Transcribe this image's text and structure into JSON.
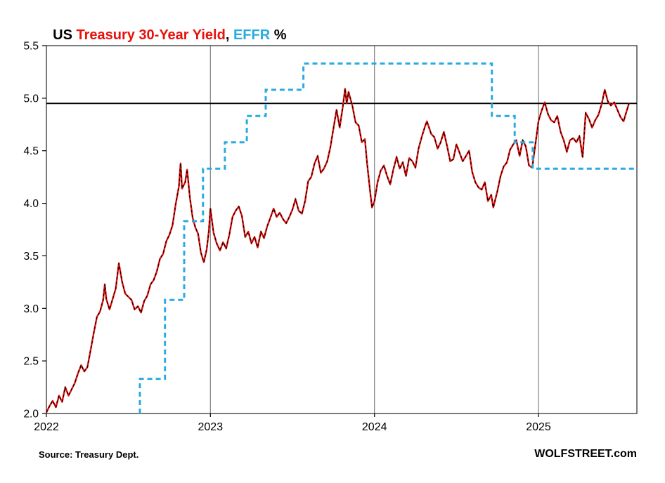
{
  "title": {
    "prefix": "US ",
    "series1": "Treasury 30-Year Yield",
    "separator": ", ",
    "series2": "EFFR",
    "suffix": " %"
  },
  "footer": {
    "source": "Source: Treasury Dept.",
    "brand": "WOLFSTREET.com"
  },
  "colors": {
    "treasury_red": "#e8100c",
    "treasury_overlay_black": "#000000",
    "effr_blue": "#29abe2",
    "gridline": "#808080",
    "frame": "#262626",
    "reference_line": "#000000",
    "background": "#ffffff"
  },
  "chart_data": {
    "type": "line",
    "title": "US Treasury 30-Year Yield, EFFR %",
    "xlabel": "",
    "ylabel": "%",
    "legend_position": "in-title",
    "grid": "vertical-only",
    "x_axis": {
      "min": 2022.0,
      "max": 2025.6,
      "ticks": [
        2022,
        2023,
        2024,
        2025
      ],
      "gridlines": [
        2023,
        2024,
        2025
      ]
    },
    "y_axis": {
      "min": 2.0,
      "max": 5.5,
      "step": 0.5
    },
    "style": {
      "gridline_color": "#808080",
      "frame_color": "#262626"
    },
    "reference_line": {
      "value": 4.95,
      "color": "#000000",
      "width": 1.8,
      "note": "latest 30-year yield level"
    },
    "series": [
      {
        "name": "US Treasury 30-Year Yield",
        "color": "#e8100c",
        "width": 2.4,
        "overlay": {
          "color": "#000000",
          "width": 1.3,
          "dash": "3.5 3.5"
        },
        "points": [
          [
            2022.0,
            2.01
          ],
          [
            2022.019,
            2.07
          ],
          [
            2022.038,
            2.12
          ],
          [
            2022.058,
            2.06
          ],
          [
            2022.077,
            2.17
          ],
          [
            2022.096,
            2.11
          ],
          [
            2022.115,
            2.25
          ],
          [
            2022.135,
            2.17
          ],
          [
            2022.154,
            2.23
          ],
          [
            2022.173,
            2.29
          ],
          [
            2022.192,
            2.38
          ],
          [
            2022.212,
            2.46
          ],
          [
            2022.231,
            2.4
          ],
          [
            2022.25,
            2.44
          ],
          [
            2022.269,
            2.6
          ],
          [
            2022.288,
            2.76
          ],
          [
            2022.308,
            2.92
          ],
          [
            2022.327,
            2.97
          ],
          [
            2022.346,
            3.08
          ],
          [
            2022.356,
            3.23
          ],
          [
            2022.365,
            3.09
          ],
          [
            2022.385,
            2.99
          ],
          [
            2022.404,
            3.09
          ],
          [
            2022.423,
            3.19
          ],
          [
            2022.442,
            3.43
          ],
          [
            2022.462,
            3.25
          ],
          [
            2022.481,
            3.14
          ],
          [
            2022.5,
            3.11
          ],
          [
            2022.519,
            3.08
          ],
          [
            2022.538,
            2.99
          ],
          [
            2022.558,
            3.02
          ],
          [
            2022.577,
            2.96
          ],
          [
            2022.596,
            3.07
          ],
          [
            2022.615,
            3.12
          ],
          [
            2022.635,
            3.23
          ],
          [
            2022.654,
            3.27
          ],
          [
            2022.673,
            3.35
          ],
          [
            2022.692,
            3.47
          ],
          [
            2022.712,
            3.52
          ],
          [
            2022.731,
            3.64
          ],
          [
            2022.75,
            3.7
          ],
          [
            2022.769,
            3.79
          ],
          [
            2022.788,
            3.99
          ],
          [
            2022.808,
            4.16
          ],
          [
            2022.818,
            4.38
          ],
          [
            2022.827,
            4.14
          ],
          [
            2022.846,
            4.2
          ],
          [
            2022.858,
            4.32
          ],
          [
            2022.875,
            4.05
          ],
          [
            2022.892,
            3.86
          ],
          [
            2022.908,
            3.77
          ],
          [
            2022.925,
            3.71
          ],
          [
            2022.942,
            3.53
          ],
          [
            2022.96,
            3.44
          ],
          [
            2022.977,
            3.56
          ],
          [
            2022.99,
            3.73
          ],
          [
            2023.0,
            3.95
          ],
          [
            2023.019,
            3.72
          ],
          [
            2023.038,
            3.62
          ],
          [
            2023.058,
            3.55
          ],
          [
            2023.077,
            3.63
          ],
          [
            2023.096,
            3.57
          ],
          [
            2023.115,
            3.7
          ],
          [
            2023.135,
            3.87
          ],
          [
            2023.154,
            3.93
          ],
          [
            2023.173,
            3.97
          ],
          [
            2023.192,
            3.88
          ],
          [
            2023.212,
            3.68
          ],
          [
            2023.231,
            3.73
          ],
          [
            2023.25,
            3.62
          ],
          [
            2023.269,
            3.68
          ],
          [
            2023.288,
            3.58
          ],
          [
            2023.308,
            3.73
          ],
          [
            2023.327,
            3.67
          ],
          [
            2023.346,
            3.78
          ],
          [
            2023.365,
            3.86
          ],
          [
            2023.385,
            3.95
          ],
          [
            2023.404,
            3.87
          ],
          [
            2023.423,
            3.91
          ],
          [
            2023.442,
            3.85
          ],
          [
            2023.462,
            3.81
          ],
          [
            2023.481,
            3.87
          ],
          [
            2023.5,
            3.94
          ],
          [
            2023.519,
            4.04
          ],
          [
            2023.538,
            3.93
          ],
          [
            2023.558,
            3.9
          ],
          [
            2023.577,
            4.02
          ],
          [
            2023.596,
            4.21
          ],
          [
            2023.615,
            4.25
          ],
          [
            2023.635,
            4.38
          ],
          [
            2023.654,
            4.45
          ],
          [
            2023.673,
            4.29
          ],
          [
            2023.692,
            4.33
          ],
          [
            2023.712,
            4.4
          ],
          [
            2023.731,
            4.53
          ],
          [
            2023.75,
            4.71
          ],
          [
            2023.769,
            4.89
          ],
          [
            2023.788,
            4.72
          ],
          [
            2023.808,
            4.93
          ],
          [
            2023.821,
            5.09
          ],
          [
            2023.831,
            4.95
          ],
          [
            2023.842,
            5.06
          ],
          [
            2023.856,
            4.98
          ],
          [
            2023.865,
            4.93
          ],
          [
            2023.885,
            4.77
          ],
          [
            2023.904,
            4.74
          ],
          [
            2023.923,
            4.58
          ],
          [
            2023.942,
            4.61
          ],
          [
            2023.954,
            4.4
          ],
          [
            2023.973,
            4.12
          ],
          [
            2023.985,
            3.96
          ],
          [
            2024.0,
            4.02
          ],
          [
            2024.019,
            4.2
          ],
          [
            2024.038,
            4.31
          ],
          [
            2024.058,
            4.36
          ],
          [
            2024.077,
            4.26
          ],
          [
            2024.096,
            4.18
          ],
          [
            2024.115,
            4.32
          ],
          [
            2024.135,
            4.44
          ],
          [
            2024.154,
            4.33
          ],
          [
            2024.173,
            4.39
          ],
          [
            2024.192,
            4.26
          ],
          [
            2024.212,
            4.43
          ],
          [
            2024.231,
            4.4
          ],
          [
            2024.25,
            4.34
          ],
          [
            2024.269,
            4.52
          ],
          [
            2024.288,
            4.63
          ],
          [
            2024.308,
            4.73
          ],
          [
            2024.32,
            4.78
          ],
          [
            2024.346,
            4.66
          ],
          [
            2024.365,
            4.63
          ],
          [
            2024.385,
            4.52
          ],
          [
            2024.404,
            4.58
          ],
          [
            2024.423,
            4.68
          ],
          [
            2024.442,
            4.55
          ],
          [
            2024.462,
            4.4
          ],
          [
            2024.481,
            4.42
          ],
          [
            2024.5,
            4.56
          ],
          [
            2024.519,
            4.48
          ],
          [
            2024.538,
            4.4
          ],
          [
            2024.558,
            4.45
          ],
          [
            2024.577,
            4.5
          ],
          [
            2024.596,
            4.3
          ],
          [
            2024.615,
            4.2
          ],
          [
            2024.635,
            4.15
          ],
          [
            2024.654,
            4.13
          ],
          [
            2024.673,
            4.2
          ],
          [
            2024.692,
            4.02
          ],
          [
            2024.712,
            4.08
          ],
          [
            2024.725,
            3.96
          ],
          [
            2024.75,
            4.12
          ],
          [
            2024.769,
            4.26
          ],
          [
            2024.788,
            4.35
          ],
          [
            2024.808,
            4.39
          ],
          [
            2024.827,
            4.51
          ],
          [
            2024.846,
            4.56
          ],
          [
            2024.865,
            4.6
          ],
          [
            2024.885,
            4.45
          ],
          [
            2024.904,
            4.6
          ],
          [
            2024.923,
            4.54
          ],
          [
            2024.942,
            4.36
          ],
          [
            2024.962,
            4.34
          ],
          [
            2024.981,
            4.56
          ],
          [
            2025.0,
            4.78
          ],
          [
            2025.019,
            4.88
          ],
          [
            2025.038,
            4.96
          ],
          [
            2025.058,
            4.85
          ],
          [
            2025.077,
            4.79
          ],
          [
            2025.096,
            4.77
          ],
          [
            2025.115,
            4.83
          ],
          [
            2025.135,
            4.68
          ],
          [
            2025.154,
            4.6
          ],
          [
            2025.173,
            4.49
          ],
          [
            2025.192,
            4.6
          ],
          [
            2025.212,
            4.62
          ],
          [
            2025.231,
            4.58
          ],
          [
            2025.25,
            4.64
          ],
          [
            2025.269,
            4.44
          ],
          [
            2025.288,
            4.86
          ],
          [
            2025.308,
            4.8
          ],
          [
            2025.327,
            4.72
          ],
          [
            2025.346,
            4.79
          ],
          [
            2025.365,
            4.84
          ],
          [
            2025.385,
            4.94
          ],
          [
            2025.404,
            5.08
          ],
          [
            2025.423,
            4.97
          ],
          [
            2025.442,
            4.93
          ],
          [
            2025.462,
            4.96
          ],
          [
            2025.481,
            4.89
          ],
          [
            2025.5,
            4.82
          ],
          [
            2025.519,
            4.78
          ],
          [
            2025.538,
            4.88
          ],
          [
            2025.552,
            4.95
          ]
        ]
      },
      {
        "name": "EFFR",
        "color": "#29abe2",
        "width": 3,
        "dashed": true,
        "dash": "7 5",
        "points": [
          [
            2022.57,
            2.0
          ],
          [
            2022.57,
            2.33
          ],
          [
            2022.723,
            2.33
          ],
          [
            2022.723,
            3.08
          ],
          [
            2022.84,
            3.08
          ],
          [
            2022.84,
            3.83
          ],
          [
            2022.955,
            3.83
          ],
          [
            2022.955,
            4.33
          ],
          [
            2023.088,
            4.33
          ],
          [
            2023.088,
            4.58
          ],
          [
            2023.222,
            4.58
          ],
          [
            2023.222,
            4.83
          ],
          [
            2023.337,
            4.83
          ],
          [
            2023.337,
            5.08
          ],
          [
            2023.567,
            5.08
          ],
          [
            2023.567,
            5.33
          ],
          [
            2024.716,
            5.33
          ],
          [
            2024.716,
            4.83
          ],
          [
            2024.855,
            4.83
          ],
          [
            2024.855,
            4.58
          ],
          [
            2024.965,
            4.58
          ],
          [
            2024.965,
            4.33
          ],
          [
            2025.6,
            4.33
          ]
        ]
      }
    ]
  }
}
